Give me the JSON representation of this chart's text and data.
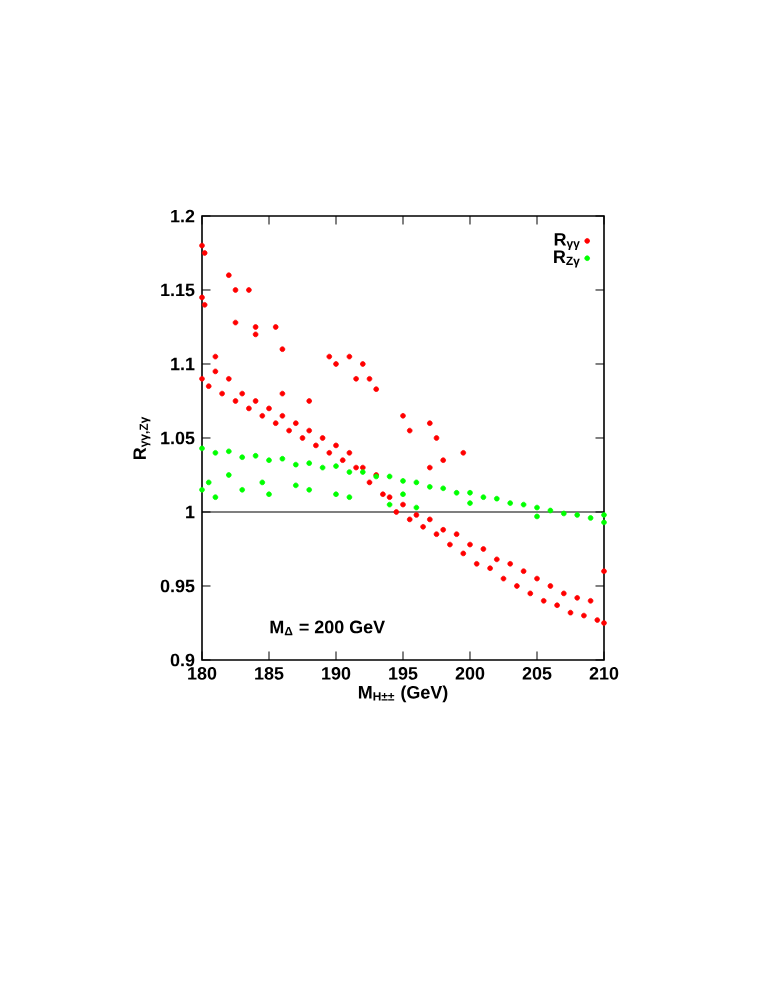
{
  "chart_data": {
    "type": "scatter",
    "xlabel": "M$_{H±±}$ (GeV)",
    "ylabel": "R$_{γγ,Zγ}$",
    "annotations": [
      "M$_{Δ}$ = 200 GeV"
    ],
    "xlim": [
      180,
      210
    ],
    "ylim": [
      0.9,
      1.2
    ],
    "xticks": [
      180,
      185,
      190,
      195,
      200,
      205,
      210
    ],
    "yticks": [
      0.9,
      0.95,
      1,
      1.05,
      1.1,
      1.15,
      1.2
    ],
    "legend": "top right",
    "marker": "circle",
    "grid": false,
    "ref_lines": [
      {
        "axis": "y",
        "value": 1,
        "color": "#000000"
      }
    ],
    "series": [
      {
        "name": "R$_{γγ}$",
        "color": "#ff0000",
        "x": [
          180,
          180.5,
          181,
          181.5,
          182,
          182.5,
          183,
          183.5,
          184,
          184.5,
          185,
          185.5,
          186,
          186.5,
          187,
          187.5,
          188,
          188.5,
          189,
          189.5,
          190,
          190.5,
          191,
          191.5,
          192,
          192.5,
          193,
          193.5,
          194,
          194.5,
          195,
          195.5,
          196,
          196.5,
          197,
          197.5,
          198,
          198.5,
          199,
          199.5,
          200,
          200.5,
          201,
          201.5,
          202,
          202.5,
          203,
          203.5,
          204,
          204.5,
          205,
          205.5,
          206,
          206.5,
          207,
          207.5,
          208,
          208.5,
          209,
          209.5,
          210,
          210,
          180,
          180.2,
          180,
          180.2,
          182,
          182.5,
          183.5,
          182.5,
          184,
          185.5,
          184,
          181,
          186,
          189.5,
          190,
          191,
          192,
          192.5,
          193,
          191.5,
          195,
          195.5,
          197,
          197.5,
          199.5,
          198,
          197,
          186,
          188
        ],
        "values": [
          1.09,
          1.085,
          1.095,
          1.08,
          1.09,
          1.075,
          1.08,
          1.07,
          1.075,
          1.065,
          1.07,
          1.06,
          1.065,
          1.055,
          1.06,
          1.05,
          1.055,
          1.045,
          1.05,
          1.04,
          1.045,
          1.035,
          1.04,
          1.03,
          1.03,
          1.02,
          1.025,
          1.012,
          1.01,
          1.0,
          1.005,
          0.995,
          0.998,
          0.99,
          0.995,
          0.985,
          0.988,
          0.978,
          0.985,
          0.972,
          0.978,
          0.965,
          0.975,
          0.962,
          0.968,
          0.955,
          0.965,
          0.95,
          0.96,
          0.945,
          0.955,
          0.94,
          0.95,
          0.937,
          0.945,
          0.932,
          0.942,
          0.93,
          0.94,
          0.927,
          0.925,
          0.96,
          1.18,
          1.175,
          1.145,
          1.14,
          1.16,
          1.15,
          1.15,
          1.128,
          1.125,
          1.125,
          1.12,
          1.105,
          1.11,
          1.105,
          1.1,
          1.105,
          1.1,
          1.09,
          1.083,
          1.09,
          1.065,
          1.055,
          1.06,
          1.05,
          1.04,
          1.035,
          1.03,
          1.08,
          1.075
        ]
      },
      {
        "name": "R$_{Zγ}$",
        "color": "#00ff00",
        "x": [
          180,
          181,
          182,
          183,
          184,
          185,
          186,
          187,
          188,
          189,
          190,
          191,
          192,
          193,
          194,
          195,
          196,
          197,
          198,
          199,
          200,
          201,
          202,
          203,
          204,
          205,
          206,
          207,
          208,
          209,
          210,
          195,
          200,
          205,
          210,
          180,
          180.5,
          181,
          182,
          183,
          184.5,
          185,
          187,
          188,
          190,
          191,
          194,
          196
        ],
        "values": [
          1.043,
          1.04,
          1.041,
          1.037,
          1.038,
          1.035,
          1.036,
          1.032,
          1.033,
          1.03,
          1.031,
          1.027,
          1.027,
          1.024,
          1.024,
          1.021,
          1.02,
          1.017,
          1.016,
          1.013,
          1.013,
          1.01,
          1.009,
          1.006,
          1.005,
          1.003,
          1.001,
          0.999,
          0.998,
          0.996,
          0.993,
          1.012,
          1.006,
          0.997,
          0.998,
          1.015,
          1.02,
          1.01,
          1.025,
          1.015,
          1.02,
          1.012,
          1.018,
          1.015,
          1.012,
          1.01,
          1.005,
          1.003
        ]
      }
    ]
  }
}
